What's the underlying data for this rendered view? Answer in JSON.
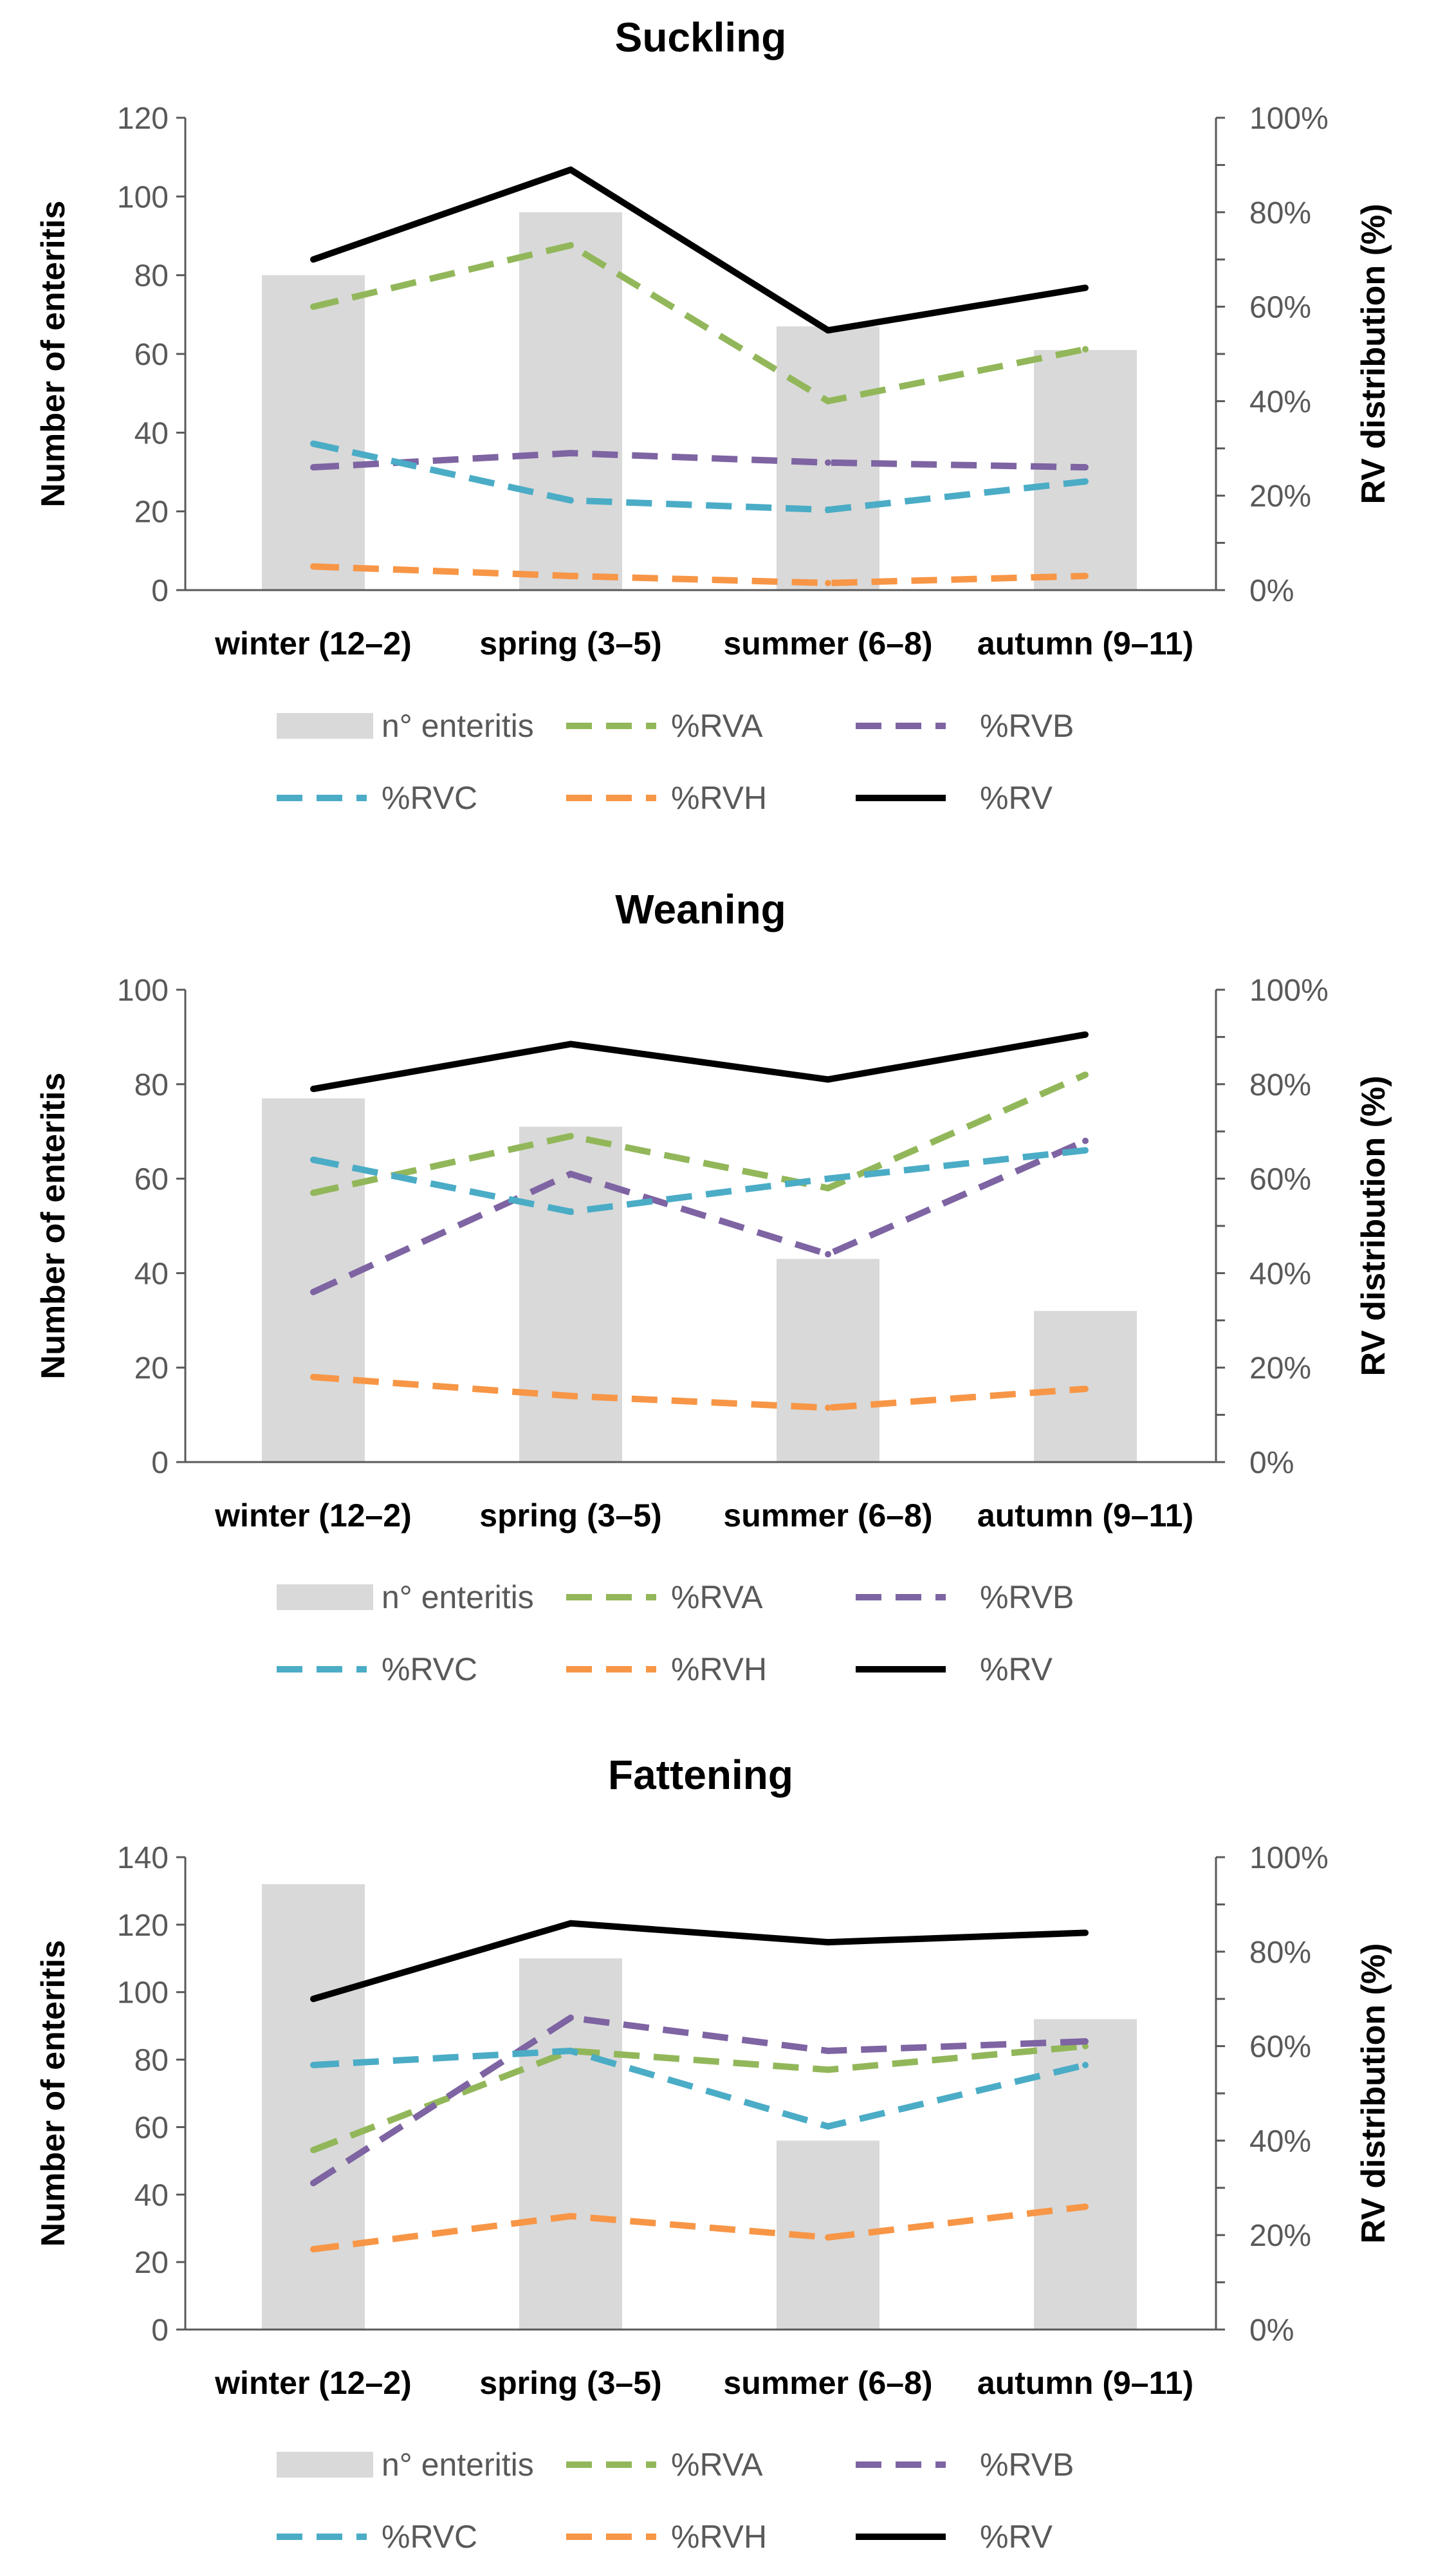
{
  "chart_data": [
    {
      "type": "bar+line",
      "title": "Suckling",
      "categories": [
        "winter (12–2)",
        "spring (3–5)",
        "summer (6–8)",
        "autumn (9–11)"
      ],
      "ylabel": "Number of enteritis",
      "y2label": "RV distribution (%)",
      "ylim": [
        0,
        120
      ],
      "yticks": [
        "0",
        "20",
        "40",
        "60",
        "80",
        "100",
        "120"
      ],
      "y2lim": [
        0,
        100
      ],
      "y2ticks": [
        "0%",
        "20%",
        "40%",
        "60%",
        "80%",
        "100%"
      ],
      "bars": {
        "name": "n° enteritis",
        "color": "#d9d9d9",
        "values": [
          80,
          96,
          67,
          61
        ]
      },
      "series": [
        {
          "name": "%RVA",
          "color": "#92b75a",
          "dash": true,
          "values": [
            60,
            73,
            40,
            51
          ]
        },
        {
          "name": "%RVB",
          "color": "#7e64a2",
          "dash": true,
          "values": [
            26,
            29,
            27,
            26
          ]
        },
        {
          "name": "%RVC",
          "color": "#4bacc6",
          "dash": true,
          "values": [
            31,
            19,
            17,
            23
          ]
        },
        {
          "name": "%RVH",
          "color": "#f79646",
          "dash": true,
          "values": [
            5,
            3,
            1.5,
            3
          ]
        },
        {
          "name": "%RV",
          "color": "#000000",
          "dash": false,
          "values": [
            70,
            89,
            55,
            64
          ]
        }
      ],
      "legend": [
        "n° enteritis",
        "%RVA",
        "%RVB",
        "%RVC",
        "%RVH",
        "%RV"
      ]
    },
    {
      "type": "bar+line",
      "title": "Weaning",
      "categories": [
        "winter (12–2)",
        "spring (3–5)",
        "summer (6–8)",
        "autumn (9–11)"
      ],
      "ylabel": "Number of enteritis",
      "y2label": "RV distribution (%)",
      "ylim": [
        0,
        100
      ],
      "yticks": [
        "0",
        "20",
        "40",
        "60",
        "80",
        "100"
      ],
      "y2lim": [
        0,
        100
      ],
      "y2ticks": [
        "0%",
        "20%",
        "40%",
        "60%",
        "80%",
        "100%"
      ],
      "bars": {
        "name": "n° enteritis",
        "color": "#d9d9d9",
        "values": [
          77,
          71,
          43,
          32
        ]
      },
      "series": [
        {
          "name": "%RVA",
          "color": "#92b75a",
          "dash": true,
          "values": [
            57,
            69,
            58,
            82
          ]
        },
        {
          "name": "%RVB",
          "color": "#7e64a2",
          "dash": true,
          "values": [
            36,
            61,
            44,
            68
          ]
        },
        {
          "name": "%RVC",
          "color": "#4bacc6",
          "dash": true,
          "values": [
            64,
            53,
            60,
            66
          ]
        },
        {
          "name": "%RVH",
          "color": "#f79646",
          "dash": true,
          "values": [
            18,
            14,
            11.5,
            15.5
          ]
        },
        {
          "name": "%RV",
          "color": "#000000",
          "dash": false,
          "values": [
            79,
            88.5,
            81,
            90.5
          ]
        }
      ],
      "legend": [
        "n° enteritis",
        "%RVA",
        "%RVB",
        "%RVC",
        "%RVH",
        "%RV"
      ]
    },
    {
      "type": "bar+line",
      "title": "Fattening",
      "categories": [
        "winter (12–2)",
        "spring (3–5)",
        "summer (6–8)",
        "autumn (9–11)"
      ],
      "ylabel": "Number of enteritis",
      "y2label": "RV distribution (%)",
      "ylim": [
        0,
        140
      ],
      "yticks": [
        "0",
        "20",
        "40",
        "60",
        "80",
        "100",
        "120",
        "140"
      ],
      "y2lim": [
        0,
        100
      ],
      "y2ticks": [
        "0%",
        "20%",
        "40%",
        "60%",
        "80%",
        "100%"
      ],
      "bars": {
        "name": "n° enteritis",
        "color": "#d9d9d9",
        "values": [
          132,
          110,
          56,
          92
        ]
      },
      "series": [
        {
          "name": "%RVA",
          "color": "#92b75a",
          "dash": true,
          "values": [
            38,
            59,
            55,
            60
          ]
        },
        {
          "name": "%RVB",
          "color": "#7e64a2",
          "dash": true,
          "values": [
            31,
            66,
            59,
            61
          ]
        },
        {
          "name": "%RVC",
          "color": "#4bacc6",
          "dash": true,
          "values": [
            56,
            59,
            43,
            56
          ]
        },
        {
          "name": "%RVH",
          "color": "#f79646",
          "dash": true,
          "values": [
            17,
            24,
            19.5,
            26
          ]
        },
        {
          "name": "%RV",
          "color": "#000000",
          "dash": false,
          "values": [
            70,
            86,
            82,
            84
          ]
        }
      ],
      "legend": [
        "n° enteritis",
        "%RVA",
        "%RVB",
        "%RVC",
        "%RVH",
        "%RV"
      ]
    }
  ]
}
